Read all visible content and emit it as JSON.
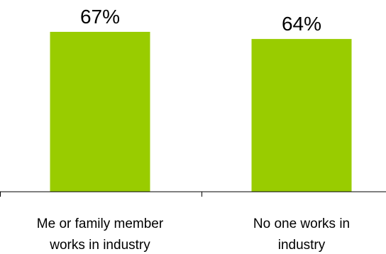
{
  "chart_data": {
    "type": "bar",
    "categories": [
      [
        "Me or family member",
        "works in industry"
      ],
      [
        "No one works in",
        "industry"
      ]
    ],
    "values": [
      67,
      64
    ],
    "value_labels": [
      "67%",
      "64%"
    ],
    "ylim": [
      0,
      100
    ],
    "bar_color": "#99cc00",
    "axis_color": "#000000",
    "grid": false,
    "legend": "none"
  }
}
